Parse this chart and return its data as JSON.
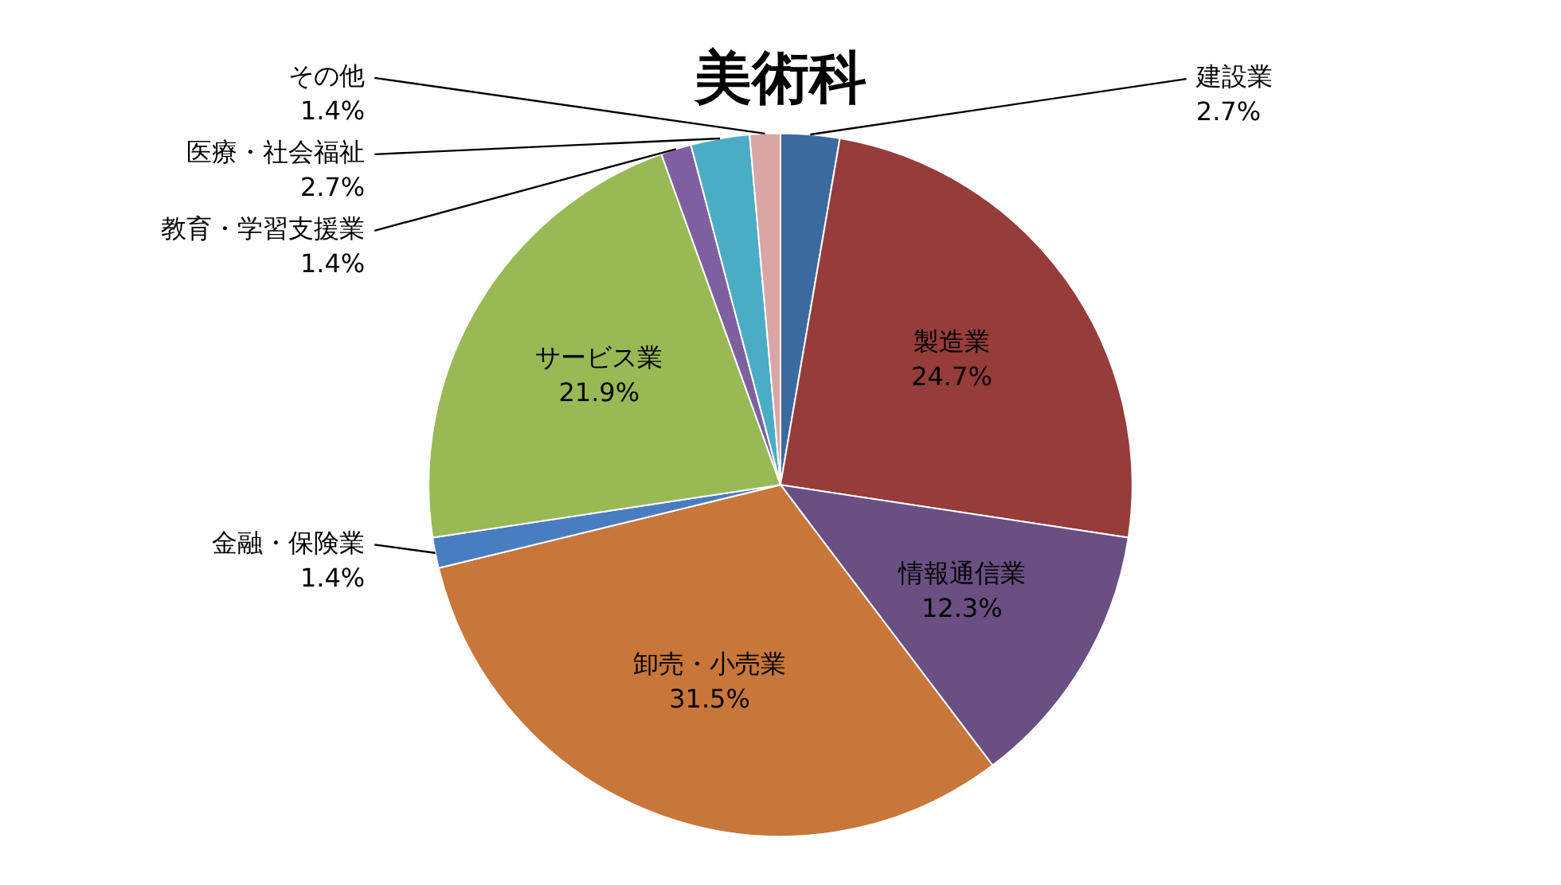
{
  "chart_data": {
    "type": "pie",
    "title": "美術科",
    "categories": [
      "建設業",
      "製造業",
      "情報通信業",
      "卸売・小売業",
      "金融・保険業",
      "サービス業",
      "教育・学習支援業",
      "医療・社会福祉",
      "その他"
    ],
    "values": [
      2.7,
      24.7,
      12.3,
      31.5,
      1.4,
      21.9,
      1.4,
      2.7,
      1.4
    ],
    "colors": [
      "#3c6aa0",
      "#963c3a",
      "#6a4f82",
      "#c8763a",
      "#4a7cc0",
      "#98b954",
      "#7e60a0",
      "#4bacc6",
      "#d9a5a5"
    ],
    "value_labels": [
      "2.7%",
      "24.7%",
      "12.3%",
      "31.5%",
      "1.4%",
      "21.9%",
      "1.4%",
      "2.7%",
      "1.4%"
    ],
    "legend": false
  }
}
